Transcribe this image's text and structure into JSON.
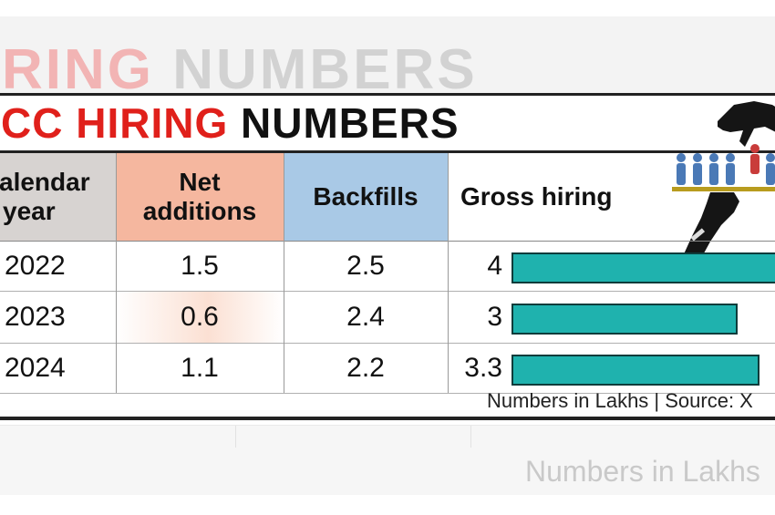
{
  "background": {
    "ghost_title_red": "RING ",
    "ghost_title_black": "NUMBERS",
    "ghost_footer": "Numbers in Lakhs"
  },
  "colors": {
    "title_red": "#e0201b",
    "net_additions_header_bg": "#f5b79f",
    "backfills_header_bg": "#a9c9e6",
    "year_header_bg": "#d7d3d1",
    "bar_fill": "#1fb2ae"
  },
  "icons": [
    "hand-serving-tray-of-people-icon"
  ],
  "chart_data": {
    "type": "table",
    "title_red": "CC HIRING",
    "title_black": "NUMBERS",
    "columns": [
      "alendar\nyear",
      "Net\nadditions",
      "Backfills",
      "Gross hiring"
    ],
    "column_header_lines": [
      [
        "alendar",
        "year"
      ],
      [
        "Net",
        "additions"
      ],
      [
        "Backfills"
      ],
      [
        "Gross hiring"
      ]
    ],
    "rows": [
      {
        "year": "2022",
        "net_additions": "1.5",
        "backfills": "2.5",
        "gross_hiring": "4"
      },
      {
        "year": "2023",
        "net_additions": "0.6",
        "backfills": "2.4",
        "gross_hiring": "3"
      },
      {
        "year": "2024",
        "net_additions": "1.1",
        "backfills": "2.2",
        "gross_hiring": "3.3"
      }
    ],
    "gross_hiring_values": [
      4,
      3,
      3.3
    ],
    "gross_hiring_bar_scale_max": 4,
    "source": "Numbers in Lakhs | Source: X"
  }
}
